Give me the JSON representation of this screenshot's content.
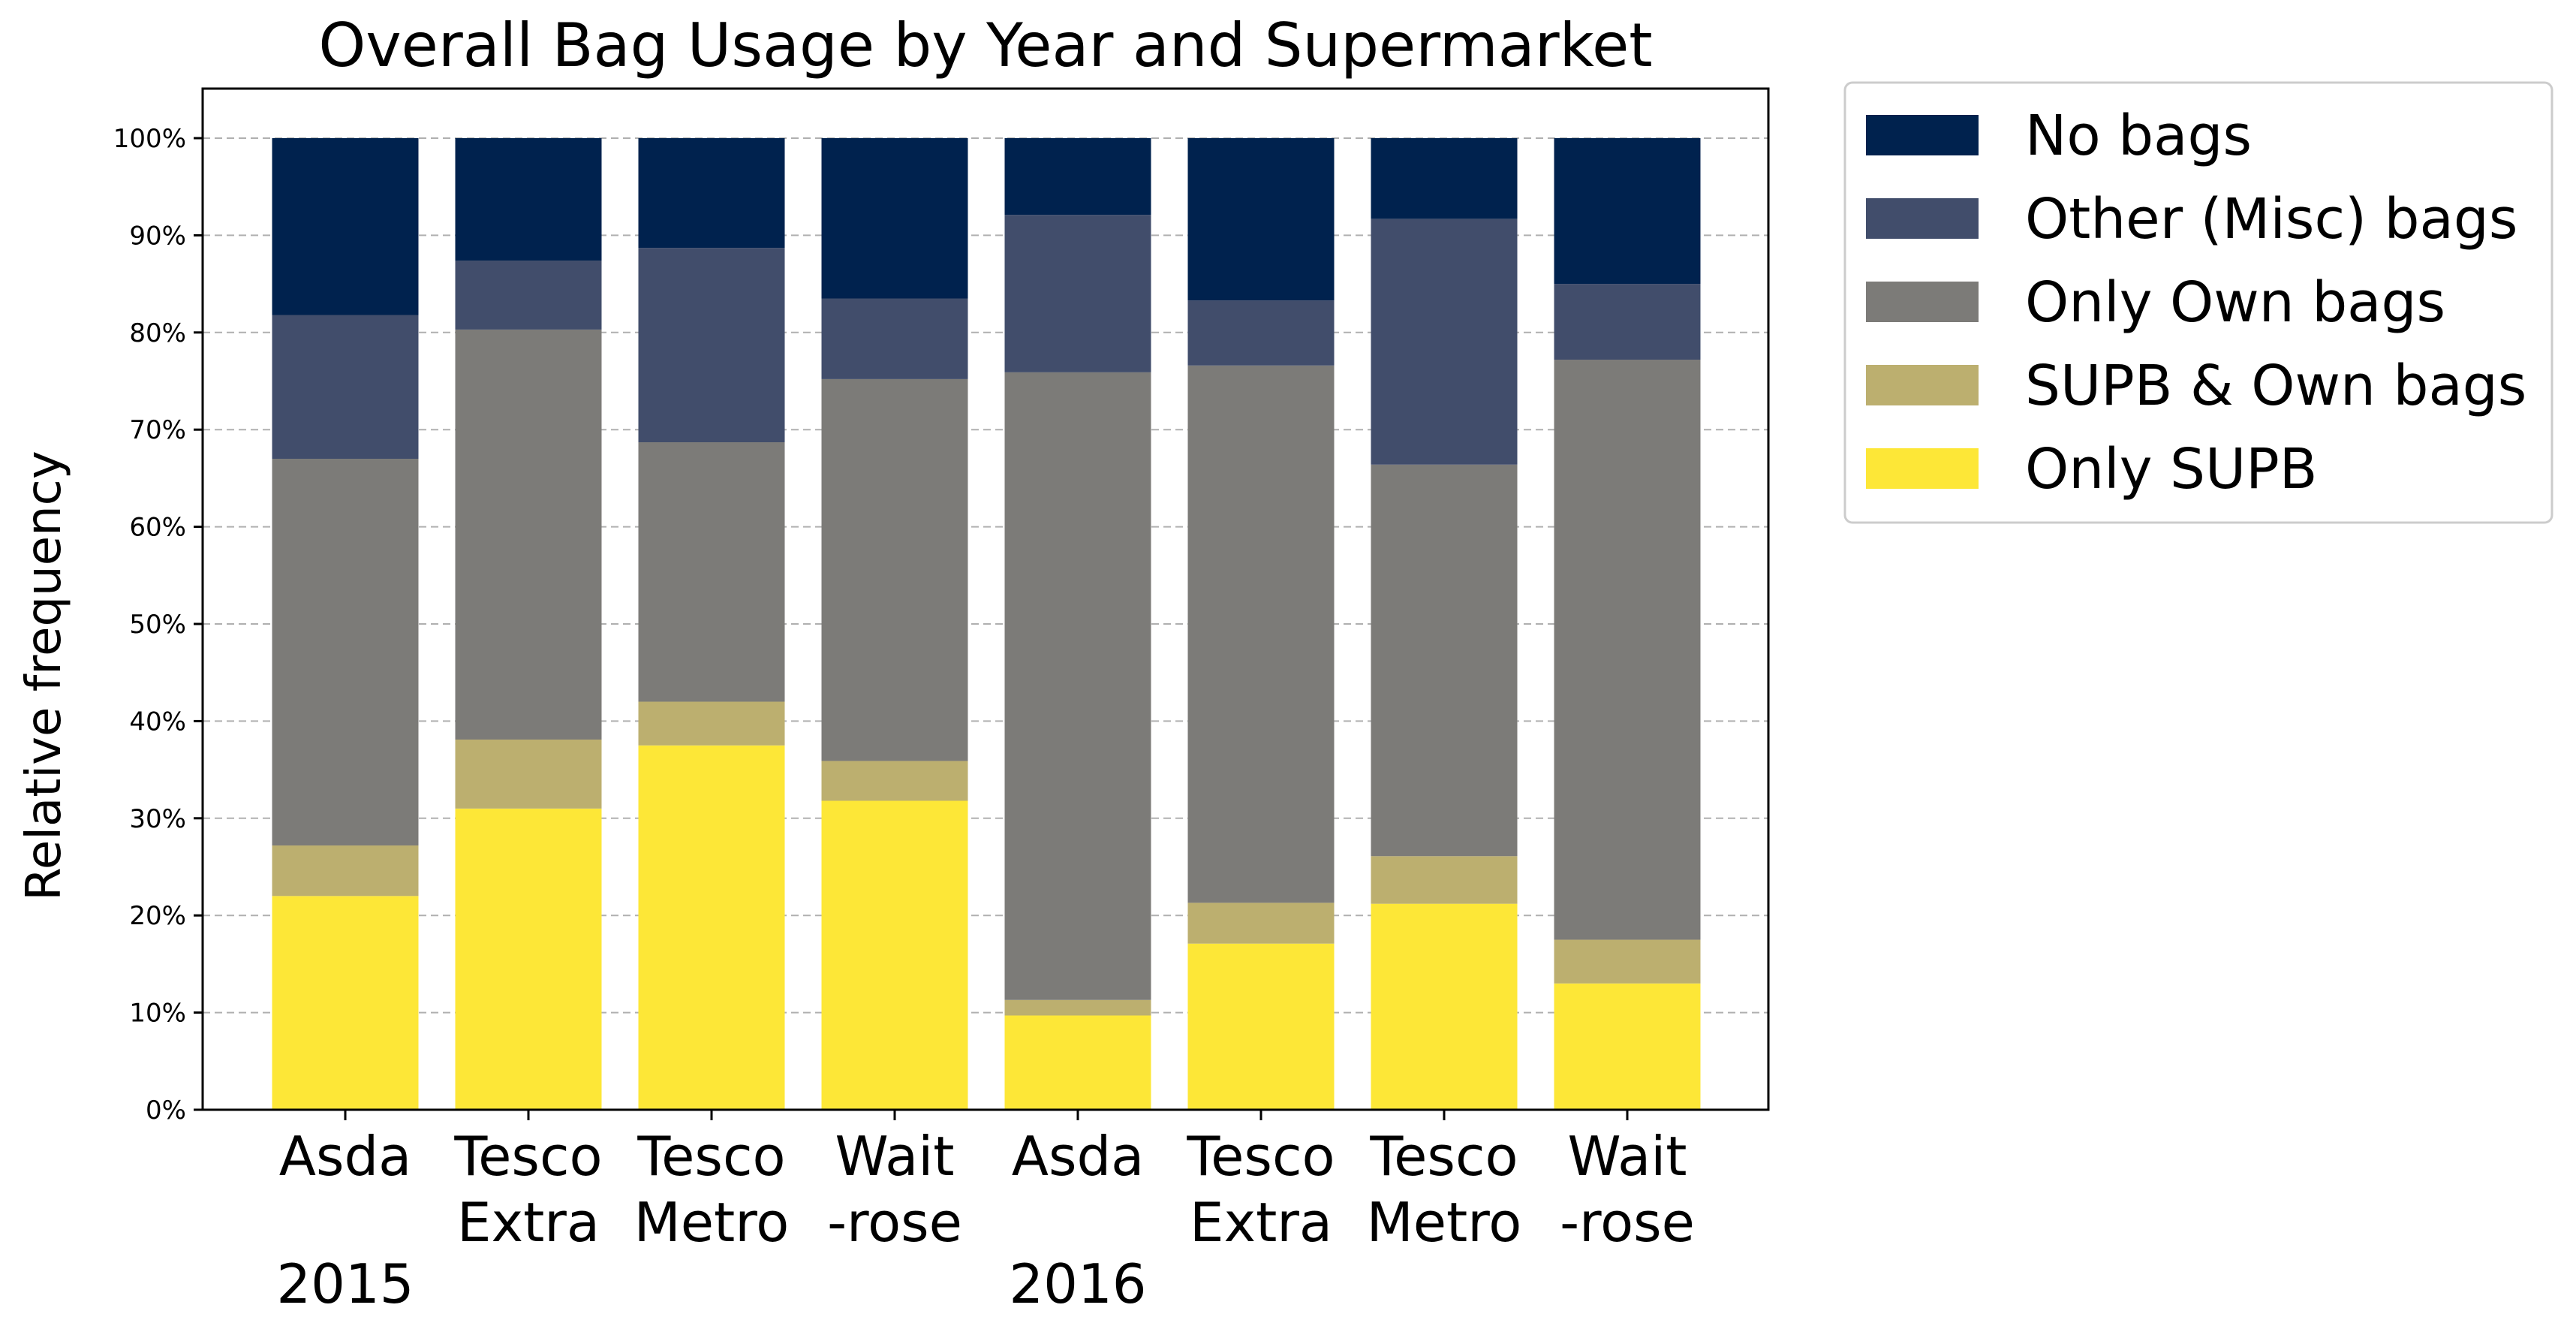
{
  "chart_data": {
    "type": "bar",
    "stacked": true,
    "title": "Overall Bag Usage by Year and Supermarket",
    "xlabel": "",
    "ylabel": "Relative frequency",
    "ylim": [
      0,
      100
    ],
    "yticks": [
      "0%",
      "10%",
      "20%",
      "30%",
      "40%",
      "50%",
      "60%",
      "70%",
      "80%",
      "90%",
      "100%"
    ],
    "grid": true,
    "legend_position": "outside-top-right",
    "categories": [
      [
        "Asda",
        ""
      ],
      [
        "Tesco",
        "Extra"
      ],
      [
        "Tesco",
        "Metro"
      ],
      [
        "Wait",
        "-rose"
      ],
      [
        "Asda",
        ""
      ],
      [
        "Tesco",
        "Extra"
      ],
      [
        "Tesco",
        "Metro"
      ],
      [
        "Wait",
        "-rose"
      ]
    ],
    "groups": [
      {
        "label": "2015",
        "category_index": 0
      },
      {
        "label": "2016",
        "category_index": 4
      }
    ],
    "series": [
      {
        "name": "Only SUPB",
        "color": "#fde737",
        "values": [
          22.0,
          31.0,
          37.5,
          31.8,
          9.7,
          17.1,
          21.2,
          13.0
        ]
      },
      {
        "name": "SUPB & Own bags",
        "color": "#bcaf6f",
        "values": [
          5.2,
          7.1,
          4.5,
          4.1,
          1.6,
          4.2,
          4.9,
          4.5
        ]
      },
      {
        "name": "Only Own bags",
        "color": "#7c7b78",
        "values": [
          39.8,
          42.2,
          26.7,
          39.3,
          64.6,
          55.3,
          40.3,
          59.7
        ]
      },
      {
        "name": "Other (Misc) bags",
        "color": "#414d6b",
        "values": [
          14.8,
          7.1,
          20.0,
          8.3,
          16.2,
          6.7,
          25.3,
          7.8
        ]
      },
      {
        "name": "No bags",
        "color": "#00224e",
        "values": [
          18.2,
          12.6,
          11.3,
          16.5,
          7.9,
          16.7,
          8.3,
          15.0
        ]
      }
    ]
  }
}
